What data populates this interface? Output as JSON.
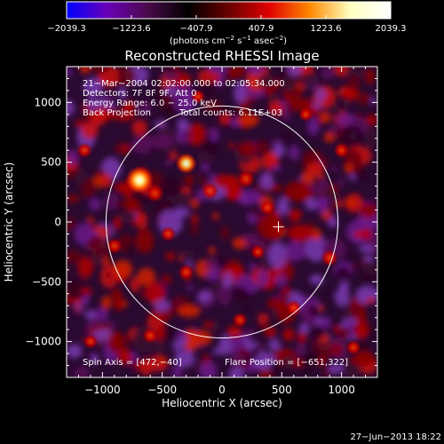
{
  "chart_data": {
    "type": "heatmap",
    "title": "Reconstructed RHESSI Image",
    "xlabel": "Heliocentric X (arcsec)",
    "ylabel": "Heliocentric Y (arcsec)",
    "xlim": [
      -1300,
      1300
    ],
    "ylim": [
      -1300,
      1300
    ],
    "x_ticks": [
      -1000,
      -500,
      0,
      500,
      1000
    ],
    "y_ticks": [
      -1000,
      -500,
      0,
      500,
      1000
    ],
    "x_tick_labels": [
      "−1000",
      "−500",
      "0",
      "500",
      "1000"
    ],
    "y_tick_labels": [
      "−1000",
      "−500",
      "0",
      "500",
      "1000"
    ],
    "colorbar": {
      "min": -2039.3,
      "max": 2039.3,
      "tick_values": [
        -2039.3,
        -1223.6,
        -407.9,
        407.9,
        1223.6,
        2039.3
      ],
      "tick_labels": [
        "−2039.3",
        "−1223.6",
        "−407.9",
        "407.9",
        "1223.6",
        "2039.3"
      ],
      "unit_main": "(photons cm",
      "unit_sup1": "−2",
      "unit_mid": " s",
      "unit_sup2": "−1",
      "unit_end": " asec",
      "unit_sup3": "−2",
      "unit_close": ")",
      "colors": [
        "#0000ff",
        "#6a00b8",
        "#4a0a4a",
        "#000000",
        "#6a0000",
        "#e00000",
        "#ff8800",
        "#ffffc0",
        "#ffffff"
      ]
    },
    "annotations": {
      "line1": "21−Mar−2004 02:02:00.000 to 02:05:34.000",
      "line2": "Detectors: 7F 8F 9F, Att 0",
      "line3": "Energy Range: 6.0 − 25.0 keV",
      "line4a": "Back Projection",
      "line4b": "Total counts: 6.11E+03",
      "spin_axis": "Spin Axis = [472,−40]",
      "flare_position": "Flare Position = [−651,322]"
    },
    "solar_limb_radius": 970,
    "sun_center": [
      0,
      0
    ],
    "cross_marker": [
      472,
      -40
    ],
    "hot_spots": [
      {
        "x": -690,
        "y": 350,
        "level": 1.0
      },
      {
        "x": -300,
        "y": 490,
        "level": 0.8
      },
      {
        "x": 200,
        "y": 360,
        "level": 0.6
      },
      {
        "x": -560,
        "y": 240,
        "level": 0.6
      },
      {
        "x": -100,
        "y": 260,
        "level": 0.55
      },
      {
        "x": 380,
        "y": 120,
        "level": 0.5
      },
      {
        "x": 900,
        "y": -300,
        "level": 0.55
      },
      {
        "x": -900,
        "y": -200,
        "level": 0.5
      },
      {
        "x": -300,
        "y": -420,
        "level": 0.5
      },
      {
        "x": 600,
        "y": -720,
        "level": 0.5
      },
      {
        "x": 150,
        "y": -820,
        "level": 0.45
      },
      {
        "x": -600,
        "y": -950,
        "level": 0.5
      },
      {
        "x": 1000,
        "y": 600,
        "level": 0.45
      },
      {
        "x": -1150,
        "y": 600,
        "level": 0.45
      },
      {
        "x": 700,
        "y": 900,
        "level": 0.4
      },
      {
        "x": -200,
        "y": 1050,
        "level": 0.4
      },
      {
        "x": 1100,
        "y": -1050,
        "level": 0.45
      },
      {
        "x": -1100,
        "y": -1000,
        "level": 0.4
      },
      {
        "x": 300,
        "y": -250,
        "level": 0.4
      },
      {
        "x": -450,
        "y": -100,
        "level": 0.45
      }
    ]
  },
  "footer": {
    "timestamp": "27−Jun−2013 18:22"
  }
}
